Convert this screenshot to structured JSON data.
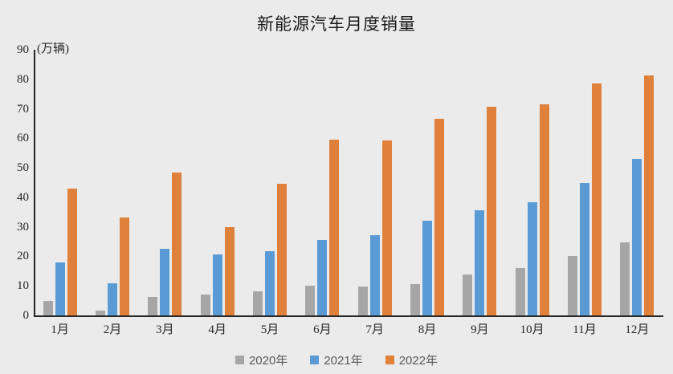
{
  "chart_data": {
    "type": "bar",
    "title": "新能源汽车月度销量",
    "unit_label": "(万辆)",
    "categories": [
      "1月",
      "2月",
      "3月",
      "4月",
      "5月",
      "6月",
      "7月",
      "8月",
      "9月",
      "10月",
      "11月",
      "12月"
    ],
    "series": [
      {
        "name": "2020年",
        "color": "#A6A6A6",
        "values": [
          5.0,
          1.5,
          6.3,
          7.2,
          8.1,
          10.2,
          9.8,
          10.7,
          13.8,
          16.0,
          20.0,
          24.8
        ]
      },
      {
        "name": "2021年",
        "color": "#5B9BD5",
        "values": [
          17.9,
          11.0,
          22.6,
          20.6,
          21.7,
          25.6,
          27.1,
          32.2,
          35.7,
          38.3,
          45.0,
          53.1
        ]
      },
      {
        "name": "2022年",
        "color": "#DF813B",
        "values": [
          43.0,
          33.2,
          48.4,
          29.9,
          44.7,
          59.6,
          59.3,
          66.6,
          70.8,
          71.4,
          78.7,
          81.4
        ]
      }
    ],
    "ylim": [
      0,
      90
    ],
    "yticks": [
      0,
      10,
      20,
      30,
      40,
      50,
      60,
      70,
      80,
      90
    ],
    "grid": false,
    "legend_position": "bottom",
    "colors": {
      "background": "#EBEBEB",
      "axis": "#262626",
      "tick_label": "#262626",
      "legend_text": "#595959",
      "title_text": "#1a1a1a"
    }
  }
}
